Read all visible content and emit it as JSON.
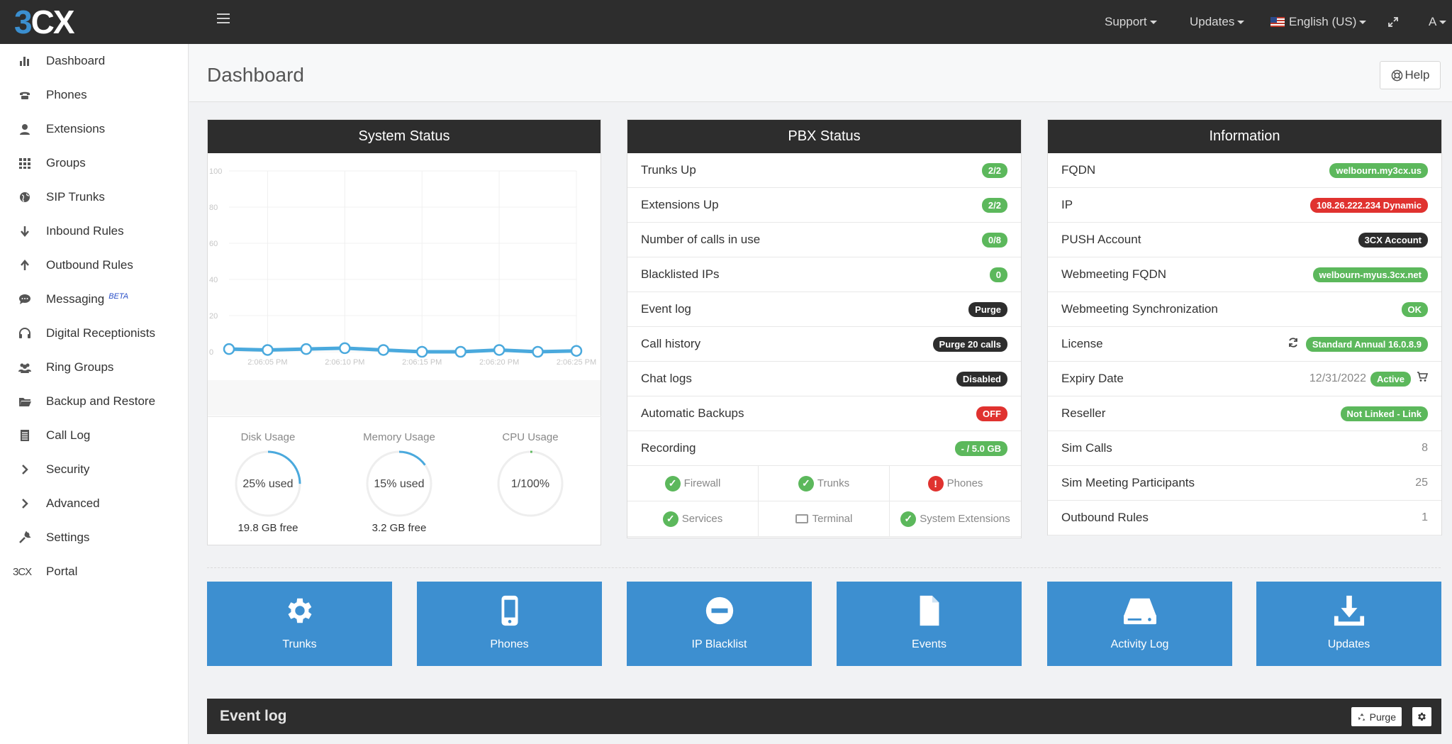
{
  "topbar": {
    "logo": "3CX",
    "support": "Support",
    "updates": "Updates",
    "language": "English (US)",
    "user": "A"
  },
  "sidebar": {
    "items": [
      {
        "label": "Dashboard",
        "icon": "bar-chart-icon"
      },
      {
        "label": "Phones",
        "icon": "phone-icon"
      },
      {
        "label": "Extensions",
        "icon": "user-icon"
      },
      {
        "label": "Groups",
        "icon": "grid-icon"
      },
      {
        "label": "SIP Trunks",
        "icon": "globe-icon"
      },
      {
        "label": "Inbound Rules",
        "icon": "arrow-down-icon"
      },
      {
        "label": "Outbound Rules",
        "icon": "arrow-up-icon"
      },
      {
        "label": "Messaging",
        "icon": "chat-icon",
        "badge": "BETA"
      },
      {
        "label": "Digital Receptionists",
        "icon": "headset-icon"
      },
      {
        "label": "Ring Groups",
        "icon": "users-icon"
      },
      {
        "label": "Backup and Restore",
        "icon": "folder-icon"
      },
      {
        "label": "Call Log",
        "icon": "list-icon"
      },
      {
        "label": "Security",
        "icon": "chevron-right-icon"
      },
      {
        "label": "Advanced",
        "icon": "chevron-right-icon"
      },
      {
        "label": "Settings",
        "icon": "wrench-icon"
      },
      {
        "label": "Portal",
        "icon": "3cx-logo-icon",
        "icon_text": "3CX"
      }
    ]
  },
  "header": {
    "title": "Dashboard",
    "help": "Help"
  },
  "system_status": {
    "title": "System Status",
    "disk": {
      "label": "Disk Usage",
      "text": "25% used",
      "free": "19.8 GB free",
      "percent": 25
    },
    "memory": {
      "label": "Memory Usage",
      "text": "15% used",
      "free": "3.2 GB free",
      "percent": 15
    },
    "cpu": {
      "label": "CPU Usage",
      "text": "1/100%",
      "percent": 1
    }
  },
  "chart_data": {
    "type": "line",
    "x": [
      "",
      "2:06:05 PM",
      "",
      "2:06:10 PM",
      "",
      "2:06:15 PM",
      "",
      "2:06:20 PM",
      "",
      "2:06:25 PM"
    ],
    "x_ticks": [
      "2:06:05 PM",
      "2:06:10 PM",
      "2:06:15 PM",
      "2:06:20 PM",
      "2:06:25 PM"
    ],
    "y_ticks": [
      "100",
      "80",
      "60",
      "40",
      "20",
      "0"
    ],
    "values": [
      1.5,
      1,
      1.5,
      2,
      1,
      0,
      0,
      1,
      0,
      0.5
    ],
    "ylim": [
      0,
      100
    ],
    "grid": true,
    "color": "#4aa9dd"
  },
  "pbx_status": {
    "title": "PBX Status",
    "rows": [
      {
        "label": "Trunks Up",
        "value": "2/2",
        "style": "green"
      },
      {
        "label": "Extensions Up",
        "value": "2/2",
        "style": "green"
      },
      {
        "label": "Number of calls in use",
        "value": "0/8",
        "style": "green"
      },
      {
        "label": "Blacklisted IPs",
        "value": "0",
        "style": "green"
      },
      {
        "label": "Event log",
        "value": "Purge",
        "style": "dark"
      },
      {
        "label": "Call history",
        "value": "Purge 20 calls",
        "style": "dark"
      },
      {
        "label": "Chat logs",
        "value": "Disabled",
        "style": "dark"
      },
      {
        "label": "Automatic Backups",
        "value": "OFF",
        "style": "red"
      },
      {
        "label": "Recording",
        "value": "- / 5.0 GB",
        "style": "green"
      }
    ],
    "services": [
      {
        "label": "Firewall",
        "state": "ok"
      },
      {
        "label": "Trunks",
        "state": "ok"
      },
      {
        "label": "Phones",
        "state": "error"
      },
      {
        "label": "Services",
        "state": "ok"
      },
      {
        "label": "Terminal",
        "state": "terminal"
      },
      {
        "label": "System Extensions",
        "state": "ok"
      }
    ]
  },
  "information": {
    "title": "Information",
    "rows": [
      {
        "label": "FQDN",
        "value": "welbourn.my3cx.us",
        "style": "green"
      },
      {
        "label": "IP",
        "value": "108.26.222.234 Dynamic",
        "style": "red"
      },
      {
        "label": "PUSH Account",
        "value": "3CX Account",
        "style": "dark"
      },
      {
        "label": "Webmeeting FQDN",
        "value": "welbourn-myus.3cx.net",
        "style": "green"
      },
      {
        "label": "Webmeeting Synchronization",
        "value": "OK",
        "style": "green"
      },
      {
        "label": "License",
        "value": "Standard Annual 16.0.8.9",
        "style": "green",
        "refresh": true
      },
      {
        "label": "Expiry Date",
        "value": "Active",
        "style": "green",
        "date": "12/31/2022",
        "cart": true
      },
      {
        "label": "Reseller",
        "value": "Not Linked - Link",
        "style": "green"
      },
      {
        "label": "Sim Calls",
        "value": "8",
        "style": "plain"
      },
      {
        "label": "Sim Meeting Participants",
        "value": "25",
        "style": "plain"
      },
      {
        "label": "Outbound Rules",
        "value": "1",
        "style": "plain"
      }
    ]
  },
  "tiles": [
    {
      "label": "Trunks",
      "icon": "gear-icon"
    },
    {
      "label": "Phones",
      "icon": "mobile-phone-icon"
    },
    {
      "label": "IP Blacklist",
      "icon": "minus-circle-icon"
    },
    {
      "label": "Events",
      "icon": "file-icon"
    },
    {
      "label": "Activity Log",
      "icon": "hard-drive-icon"
    },
    {
      "label": "Updates",
      "icon": "download-icon"
    }
  ],
  "event_log": {
    "title": "Event log",
    "purge": "Purge"
  }
}
